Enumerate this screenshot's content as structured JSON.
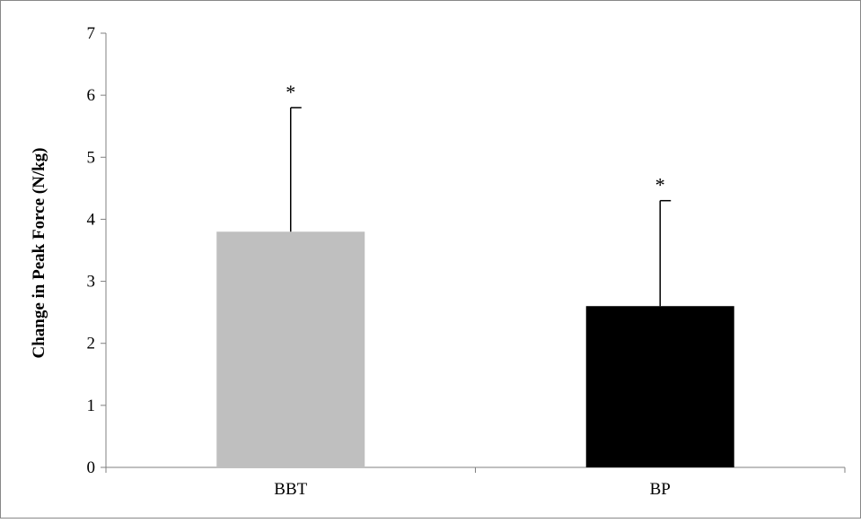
{
  "chart_data": {
    "type": "bar",
    "categories": [
      "BBT",
      "BP"
    ],
    "values": [
      3.8,
      2.6
    ],
    "error_bars_upper": [
      2.0,
      1.7
    ],
    "significance_markers": [
      "*",
      "*"
    ],
    "colors": [
      "#bfbfbf",
      "#000000"
    ],
    "title": "",
    "xlabel": "",
    "ylabel": "Change in Peak Force (N/kg)",
    "ylim": [
      0,
      7
    ],
    "yticks": [
      0,
      1,
      2,
      3,
      4,
      5,
      6,
      7
    ],
    "grid": false,
    "legend": "none"
  }
}
